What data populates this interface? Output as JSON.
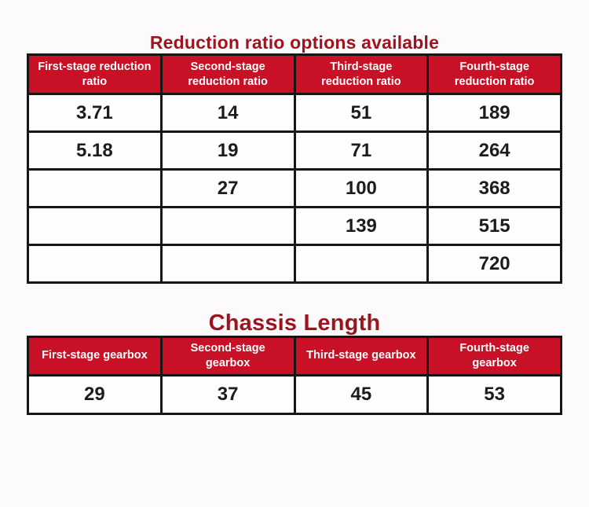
{
  "page": {
    "background_color": "#FCFAFB",
    "header_red": "#C81126",
    "title_color": "#9B141E",
    "border_color": "#161616"
  },
  "section1": {
    "title": "Reduction ratio options available",
    "table": {
      "headers": [
        "First-stage reduction ratio",
        "Second-stage reduction ratio",
        "Third-stage reduction ratio",
        "Fourth-stage reduction ratio"
      ],
      "rows": [
        [
          "3.71",
          "14",
          "51",
          "189"
        ],
        [
          "5.18",
          "19",
          "71",
          "264"
        ],
        [
          "",
          "27",
          "100",
          "368"
        ],
        [
          "",
          "",
          "139",
          "515"
        ],
        [
          "",
          "",
          "",
          "720"
        ]
      ]
    }
  },
  "section2": {
    "title": "Chassis Length",
    "table": {
      "headers": [
        "First-stage gearbox",
        "Second-stage gearbox",
        "Third-stage gearbox",
        "Fourth-stage gearbox"
      ],
      "rows": [
        [
          "29",
          "37",
          "45",
          "53"
        ]
      ]
    }
  },
  "chart_data": [
    {
      "type": "table",
      "title": "Reduction ratio options available",
      "columns": [
        "First-stage reduction ratio",
        "Second-stage reduction ratio",
        "Third-stage reduction ratio",
        "Fourth-stage reduction ratio"
      ],
      "rows": [
        [
          "3.71",
          "14",
          "51",
          "189"
        ],
        [
          "5.18",
          "19",
          "71",
          "264"
        ],
        [
          "",
          "27",
          "100",
          "368"
        ],
        [
          "",
          "",
          "139",
          "515"
        ],
        [
          "",
          "",
          "",
          "720"
        ]
      ],
      "series": [
        {
          "name": "First-stage reduction ratio",
          "values": [
            3.71,
            5.18
          ]
        },
        {
          "name": "Second-stage reduction ratio",
          "values": [
            14,
            19,
            27
          ]
        },
        {
          "name": "Third-stage reduction ratio",
          "values": [
            51,
            71,
            100,
            139
          ]
        },
        {
          "name": "Fourth-stage reduction ratio",
          "values": [
            189,
            264,
            368,
            515,
            720
          ]
        }
      ]
    },
    {
      "type": "table",
      "title": "Chassis Length",
      "columns": [
        "First-stage gearbox",
        "Second-stage gearbox",
        "Third-stage gearbox",
        "Fourth-stage gearbox"
      ],
      "rows": [
        [
          "29",
          "37",
          "45",
          "53"
        ]
      ],
      "series": [
        {
          "name": "First-stage gearbox",
          "values": [
            29
          ]
        },
        {
          "name": "Second-stage gearbox",
          "values": [
            37
          ]
        },
        {
          "name": "Third-stage gearbox",
          "values": [
            45
          ]
        },
        {
          "name": "Fourth-stage gearbox",
          "values": [
            53
          ]
        }
      ]
    }
  ]
}
